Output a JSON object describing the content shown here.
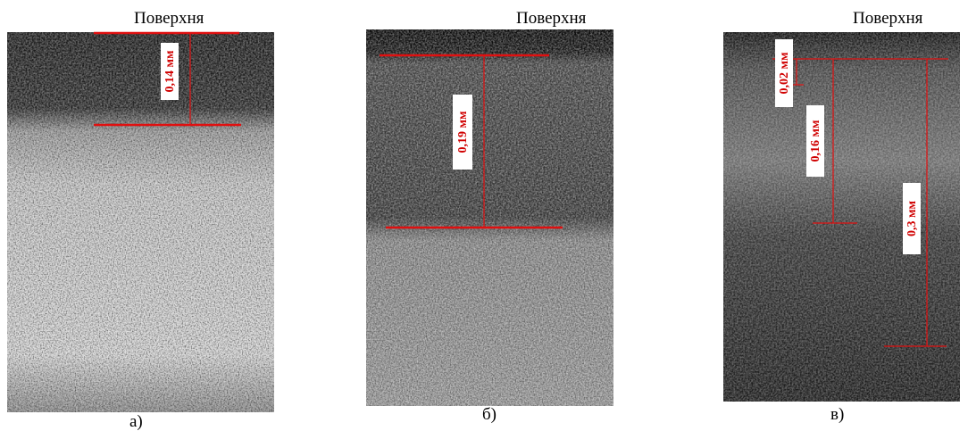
{
  "panels": [
    {
      "surface_label": "Поверхня",
      "measurements": [
        "0,14 мм"
      ],
      "caption": "а)"
    },
    {
      "surface_label": "Поверхня",
      "measurements": [
        "0,19 мм"
      ],
      "caption": "б)"
    },
    {
      "surface_label": "Поверхня",
      "measurements": [
        "0,02 мм",
        "0,16 мм",
        "0,3 мм"
      ],
      "caption": "в)"
    }
  ]
}
